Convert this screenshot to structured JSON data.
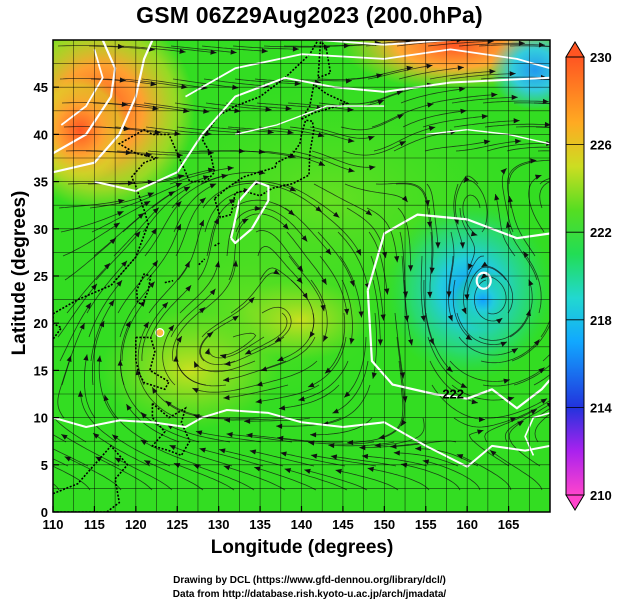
{
  "title": "GSM 06Z29Aug2023 (200.0hPa)",
  "x_axis": {
    "label": "Longitude (degrees)",
    "range": [
      110,
      170
    ],
    "ticks": [
      "110",
      "115",
      "120",
      "125",
      "130",
      "135",
      "140",
      "145",
      "150",
      "155",
      "160",
      "165"
    ]
  },
  "y_axis": {
    "label": "Latitude  (degrees)",
    "range": [
      0,
      50
    ],
    "ticks": [
      "0",
      "5",
      "10",
      "15",
      "20",
      "25",
      "30",
      "35",
      "40",
      "45"
    ]
  },
  "colorbar": {
    "range": [
      210,
      230
    ],
    "ticks": [
      "230",
      "226",
      "222",
      "218",
      "214",
      "210"
    ],
    "colors": [
      "#ff44cc",
      "#aa22ee",
      "#2233dd",
      "#11a8ff",
      "#22d8d0",
      "#22dd55",
      "#55dd22",
      "#ccdd22",
      "#ffaa22",
      "#ff5522"
    ]
  },
  "contour_labels": [
    {
      "text": "222",
      "lon": 157,
      "lat": 12
    }
  ],
  "credits": {
    "line1": "Drawing by DCL (https://www.gfd-dennou.org/library/dcl/)",
    "line2": "Data from http://database.rish.kyoto-u.ac.jp/arch/jmadata/"
  }
}
